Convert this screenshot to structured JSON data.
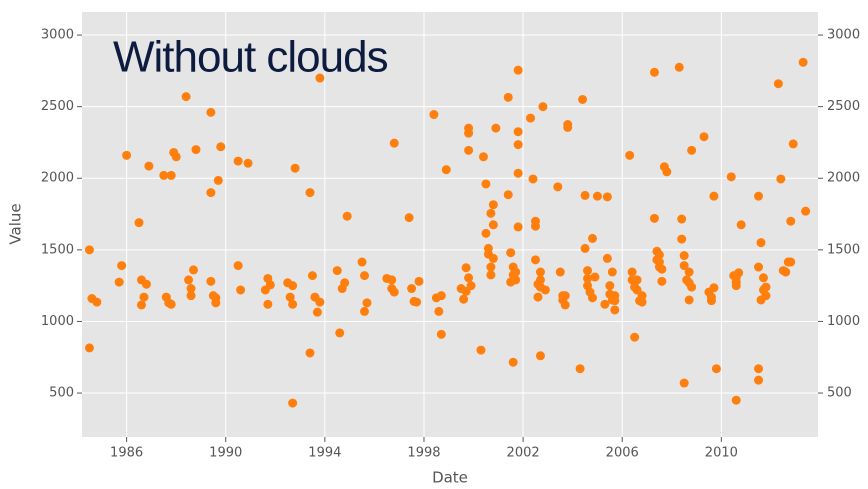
{
  "chart_data": {
    "type": "scatter",
    "annotation": "Without clouds",
    "xlabel": "Date",
    "ylabel": "Value",
    "color": "#ff7f0e",
    "grid": true,
    "mirror_y_axis": true,
    "xlim": [
      1984.2,
      2013.9
    ],
    "xticks": [
      1986,
      1990,
      1994,
      1998,
      2002,
      2006,
      2010
    ],
    "ylim": [
      193,
      3161
    ],
    "yticks": [
      500,
      1000,
      1500,
      2000,
      2500,
      3000
    ],
    "x": [
      1984.5,
      1984.5,
      1984.6,
      1984.8,
      1985.8,
      1985.7,
      1986.0,
      1986.5,
      1986.6,
      1986.7,
      1986.6,
      1986.8,
      1986.9,
      1987.5,
      1987.6,
      1987.7,
      1987.8,
      1987.8,
      1987.9,
      1988.0,
      1988.4,
      1988.5,
      1988.6,
      1988.6,
      1988.7,
      1988.8,
      1989.4,
      1989.4,
      1989.4,
      1989.5,
      1989.6,
      1989.6,
      1989.7,
      1989.8,
      1990.5,
      1990.5,
      1990.6,
      1990.9,
      1991.6,
      1991.7,
      1991.7,
      1991.8,
      1992.5,
      1992.6,
      1992.7,
      1992.7,
      1992.8,
      1992.7,
      1993.4,
      1993.4,
      1993.5,
      1993.6,
      1993.7,
      1993.8,
      1993.8,
      1994.5,
      1994.6,
      1994.7,
      1994.8,
      1994.9,
      1995.5,
      1995.6,
      1995.6,
      1995.7,
      1996.5,
      1996.7,
      1996.7,
      1996.8,
      1996.8,
      1997.4,
      1997.5,
      1997.6,
      1997.7,
      1997.8,
      1998.4,
      1998.5,
      1998.6,
      1998.7,
      1998.7,
      1998.9,
      1999.5,
      1999.6,
      1999.7,
      1999.8,
      1999.8,
      1999.8,
      1999.8,
      1999.9,
      1999.7,
      2000.3,
      2000.4,
      2000.5,
      2000.5,
      2000.6,
      2000.7,
      2000.6,
      2000.7,
      2000.7,
      2000.8,
      2000.8,
      2000.9,
      2000.8,
      2001.4,
      2001.4,
      2001.5,
      2001.5,
      2001.6,
      2001.6,
      2001.6,
      2001.7,
      2001.7,
      2001.8,
      2001.8,
      2001.8,
      2001.8,
      2001.8,
      2002.3,
      2002.4,
      2002.5,
      2002.5,
      2002.5,
      2002.6,
      2002.6,
      2002.7,
      2002.7,
      2002.7,
      2002.8,
      2002.9,
      2002.7,
      2003.4,
      2003.5,
      2003.6,
      2003.6,
      2003.7,
      2003.8,
      2003.8,
      2003.7,
      2004.3,
      2004.4,
      2004.5,
      2004.5,
      2004.6,
      2004.6,
      2004.6,
      2004.7,
      2004.8,
      2004.9,
      2005.0,
      2004.8,
      2005.3,
      2005.4,
      2005.4,
      2005.5,
      2005.5,
      2005.6,
      2005.6,
      2005.7,
      2005.7,
      2005.7,
      2006.3,
      2006.4,
      2006.4,
      2006.5,
      2006.5,
      2006.6,
      2006.6,
      2006.7,
      2006.8,
      2006.8,
      2007.3,
      2007.3,
      2007.4,
      2007.4,
      2007.5,
      2007.5,
      2007.5,
      2007.6,
      2007.6,
      2007.7,
      2007.8,
      2008.3,
      2008.4,
      2008.4,
      2008.5,
      2008.5,
      2008.5,
      2008.6,
      2008.7,
      2008.7,
      2008.8,
      2008.8,
      2008.7,
      2009.3,
      2009.5,
      2009.6,
      2009.6,
      2009.7,
      2009.7,
      2009.8,
      2010.4,
      2010.5,
      2010.6,
      2010.6,
      2010.6,
      2010.7,
      2010.8,
      2010.6,
      2011.5,
      2011.5,
      2011.5,
      2011.5,
      2011.6,
      2011.6,
      2011.7,
      2011.7,
      2011.8,
      2011.8,
      2012.3,
      2012.4,
      2012.5,
      2012.6,
      2012.7,
      2012.8,
      2012.8,
      2012.9,
      2013.3,
      2013.4
    ],
    "values": [
      1500,
      815,
      1160,
      1135,
      1390,
      1275,
      2160,
      1690,
      1290,
      1170,
      1115,
      1260,
      2085,
      2020,
      1170,
      1130,
      1120,
      2020,
      2180,
      2150,
      2570,
      1290,
      1180,
      1230,
      1360,
      2200,
      2460,
      1900,
      1280,
      1180,
      1130,
      1165,
      1985,
      2220,
      2120,
      1390,
      1220,
      2105,
      1220,
      1300,
      1120,
      1255,
      1270,
      1170,
      1120,
      430,
      2070,
      1250,
      1900,
      780,
      1320,
      1170,
      1065,
      2700,
      1135,
      1355,
      920,
      1230,
      1270,
      1735,
      1415,
      1320,
      1070,
      1130,
      1300,
      1290,
      1230,
      1205,
      2245,
      1725,
      1230,
      1140,
      1135,
      1280,
      2445,
      1165,
      1070,
      910,
      1180,
      2060,
      1230,
      1155,
      1375,
      1305,
      2350,
      2315,
      2195,
      1250,
      1210,
      800,
      2150,
      1960,
      1615,
      1510,
      1755,
      1470,
      1325,
      1380,
      1440,
      1815,
      2350,
      1675,
      2565,
      1885,
      1275,
      1480,
      715,
      1380,
      1325,
      1290,
      1345,
      2755,
      2325,
      2235,
      1660,
      2035,
      2420,
      1995,
      1700,
      1665,
      1430,
      1260,
      1170,
      1290,
      760,
      1345,
      2500,
      1220,
      1240,
      1940,
      1345,
      1180,
      1150,
      1115,
      2375,
      2355,
      1180,
      670,
      2550,
      1510,
      1880,
      1355,
      1300,
      1250,
      1205,
      1580,
      1310,
      1875,
      1165,
      1120,
      1870,
      1440,
      1250,
      1190,
      1345,
      1150,
      1080,
      1145,
      1180,
      2160,
      1345,
      1290,
      1240,
      890,
      1220,
      1290,
      1145,
      1135,
      1180,
      2740,
      1720,
      1430,
      1490,
      1465,
      1415,
      1380,
      1365,
      1280,
      2080,
      2045,
      2775,
      1715,
      1575,
      1390,
      570,
      1460,
      1290,
      1345,
      1150,
      1240,
      2195,
      1270,
      2290,
      1205,
      1170,
      1145,
      1235,
      1875,
      670,
      2010,
      1320,
      1275,
      1250,
      450,
      1340,
      1675,
      1305,
      670,
      590,
      1875,
      1380,
      1550,
      1150,
      1220,
      1305,
      1180,
      1240,
      2660,
      1995,
      1355,
      1345,
      1415,
      1415,
      1700,
      2240,
      2810,
      1770
    ]
  }
}
